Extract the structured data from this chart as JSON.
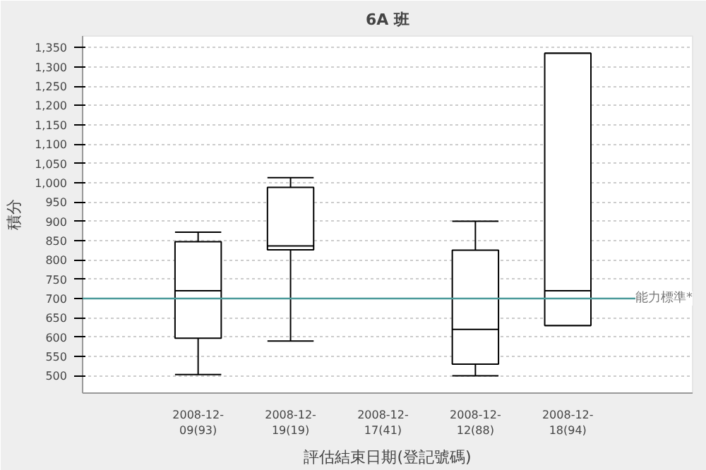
{
  "chart_data": {
    "type": "box",
    "title": "6A 班",
    "xlabel": "評估結束日期(登記號碼)",
    "ylabel": "積分",
    "categories": [
      "2008-12-\n09(93)",
      "2008-12-\n19(19)",
      "2008-12-\n17(41)",
      "2008-12-\n12(88)",
      "2008-12-\n18(94)"
    ],
    "boxes": [
      {
        "low": 503,
        "q1": 597,
        "median": 720,
        "q3": 847,
        "high": 872
      },
      {
        "low": 590,
        "q1": 826,
        "median": 836,
        "q3": 988,
        "high": 1013
      },
      {
        "low": 700,
        "q1": 700,
        "median": 700,
        "q3": 700,
        "high": 700
      },
      {
        "low": 500,
        "q1": 530,
        "median": 620,
        "q3": 825,
        "high": 900
      },
      {
        "low": 630,
        "q1": 630,
        "median": 720,
        "q3": 1335,
        "high": 1335
      }
    ],
    "ylim": [
      455,
      1380
    ],
    "yticks": [
      {
        "value": 500,
        "label": "500"
      },
      {
        "value": 550,
        "label": "550"
      },
      {
        "value": 600,
        "label": "600"
      },
      {
        "value": 650,
        "label": "650"
      },
      {
        "value": 700,
        "label": "700"
      },
      {
        "value": 750,
        "label": "750"
      },
      {
        "value": 800,
        "label": "800"
      },
      {
        "value": 850,
        "label": "850"
      },
      {
        "value": 900,
        "label": "900"
      },
      {
        "value": 950,
        "label": "950"
      },
      {
        "value": 1000,
        "label": "1,000"
      },
      {
        "value": 1050,
        "label": "1,050"
      },
      {
        "value": 1100,
        "label": "1,100"
      },
      {
        "value": 1150,
        "label": "1,150"
      },
      {
        "value": 1200,
        "label": "1,200"
      },
      {
        "value": 1250,
        "label": "1,250"
      },
      {
        "value": 1300,
        "label": "1,300"
      },
      {
        "value": 1350,
        "label": "1,350"
      }
    ],
    "grid": "y",
    "ref_lines": [
      {
        "axis": "y",
        "value": 700,
        "label": "能力標準*",
        "color": "#4a9a9a"
      }
    ]
  }
}
